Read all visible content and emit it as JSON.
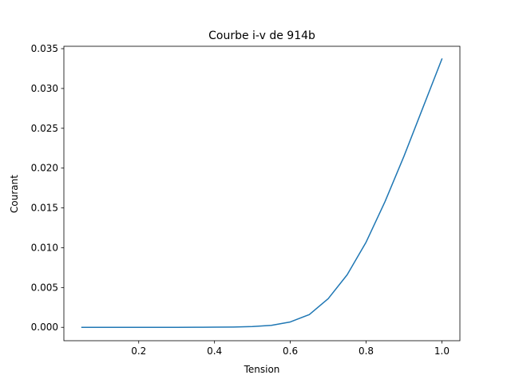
{
  "chart_data": {
    "type": "line",
    "title": "Courbe i-v de 914b",
    "xlabel": "Tension",
    "ylabel": "Courant",
    "xlim": [
      0.0025,
      1.0475
    ],
    "ylim": [
      -0.00168,
      0.0353
    ],
    "x_ticks": [
      0.2,
      0.4,
      0.6,
      0.8,
      1.0
    ],
    "x_tick_labels": [
      "0.2",
      "0.4",
      "0.6",
      "0.8",
      "1.0"
    ],
    "y_ticks": [
      0.0,
      0.005,
      0.01,
      0.015,
      0.02,
      0.025,
      0.03,
      0.035
    ],
    "y_tick_labels": [
      "0.000",
      "0.005",
      "0.010",
      "0.015",
      "0.020",
      "0.025",
      "0.030",
      "0.035"
    ],
    "grid": false,
    "series": [
      {
        "color": "#1f77b4",
        "x": [
          0.05,
          0.1,
          0.15,
          0.2,
          0.25,
          0.3,
          0.35,
          0.4,
          0.45,
          0.5,
          0.55,
          0.6,
          0.65,
          0.7,
          0.75,
          0.8,
          0.85,
          0.9,
          0.95,
          1.0
        ],
        "y": [
          0.0,
          0.0,
          0.0,
          0.0,
          0.0,
          0.0,
          1e-05,
          2e-05,
          4e-05,
          0.0001,
          0.00025,
          0.00068,
          0.0016,
          0.0036,
          0.0066,
          0.0107,
          0.0158,
          0.0215,
          0.0276,
          0.0337
        ]
      }
    ]
  }
}
